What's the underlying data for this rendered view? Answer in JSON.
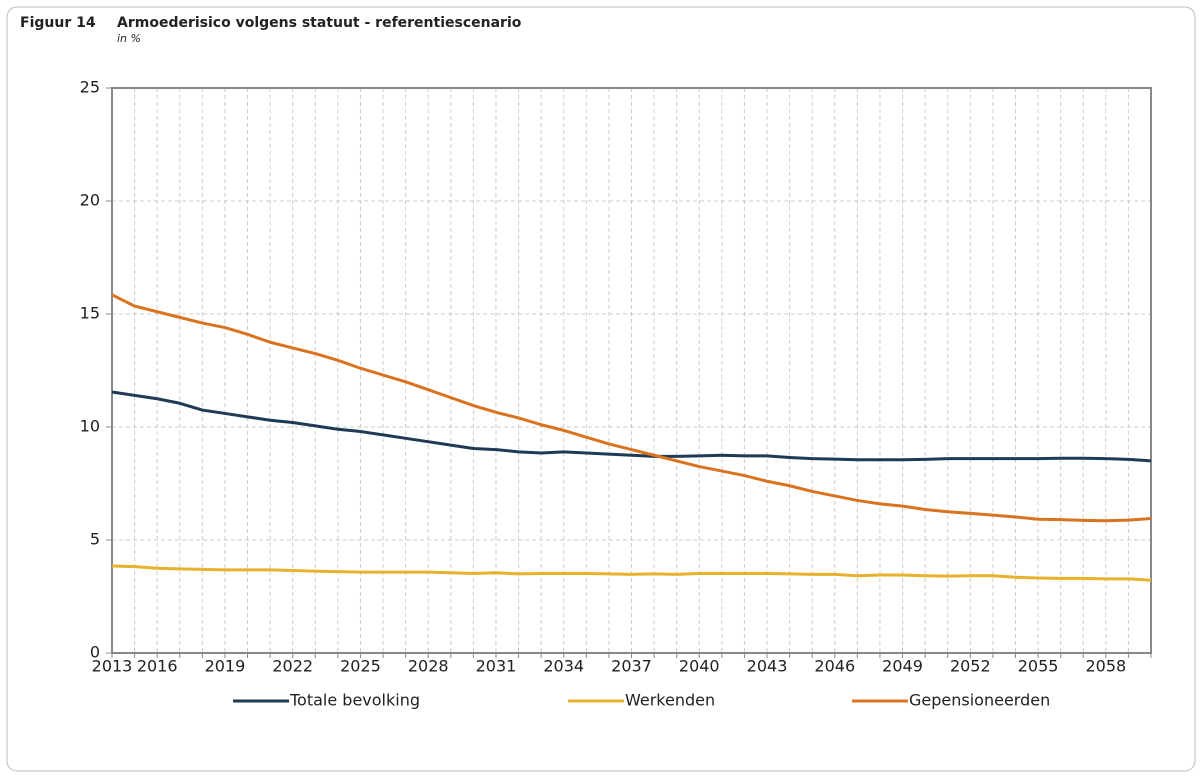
{
  "chart_data": {
    "type": "line",
    "figure_label": "Figuur 14",
    "title": "Armoederisico volgens statuut - referentiescenario",
    "subtitle": "in %",
    "categories": [
      "2013",
      null,
      "2016",
      null,
      null,
      "2019",
      null,
      null,
      "2022",
      null,
      null,
      "2025",
      null,
      null,
      "2028",
      null,
      null,
      "2031",
      null,
      null,
      "2034",
      null,
      null,
      "2037",
      null,
      null,
      "2040",
      null,
      null,
      "2043",
      null,
      null,
      "2046",
      null,
      null,
      "2049",
      null,
      null,
      "2052",
      null,
      null,
      "2055",
      null,
      null,
      "2058",
      null,
      null
    ],
    "series": [
      {
        "name": "Totale bevolking",
        "color": "#1f3a55",
        "values": [
          11.55,
          11.4,
          11.25,
          11.05,
          10.75,
          10.6,
          10.45,
          10.3,
          10.2,
          10.05,
          9.9,
          9.8,
          9.65,
          9.5,
          9.35,
          9.2,
          9.05,
          9.0,
          8.9,
          8.85,
          8.9,
          8.85,
          8.8,
          8.75,
          8.7,
          8.7,
          8.72,
          8.75,
          8.72,
          8.72,
          8.65,
          8.6,
          8.58,
          8.55,
          8.55,
          8.55,
          8.57,
          8.6,
          8.6,
          8.6,
          8.6,
          8.6,
          8.62,
          8.62,
          8.6,
          8.57,
          8.5
        ]
      },
      {
        "name": "Werkenden",
        "color": "#e8b12c",
        "values": [
          3.85,
          3.82,
          3.75,
          3.72,
          3.7,
          3.68,
          3.68,
          3.68,
          3.65,
          3.62,
          3.6,
          3.58,
          3.58,
          3.58,
          3.58,
          3.55,
          3.52,
          3.55,
          3.5,
          3.52,
          3.52,
          3.52,
          3.5,
          3.48,
          3.5,
          3.48,
          3.52,
          3.52,
          3.52,
          3.52,
          3.5,
          3.48,
          3.48,
          3.42,
          3.45,
          3.45,
          3.42,
          3.4,
          3.42,
          3.42,
          3.35,
          3.32,
          3.3,
          3.3,
          3.28,
          3.28,
          3.22
        ]
      },
      {
        "name": "Gepensioneerden",
        "color": "#d9731f",
        "values": [
          15.85,
          15.35,
          15.1,
          14.85,
          14.6,
          14.4,
          14.1,
          13.75,
          13.5,
          13.25,
          12.95,
          12.6,
          12.3,
          12.0,
          11.65,
          11.3,
          10.95,
          10.65,
          10.4,
          10.1,
          9.85,
          9.55,
          9.25,
          9.0,
          8.75,
          8.5,
          8.25,
          8.05,
          7.85,
          7.6,
          7.4,
          7.15,
          6.95,
          6.75,
          6.6,
          6.5,
          6.35,
          6.25,
          6.18,
          6.1,
          6.02,
          5.92,
          5.9,
          5.87,
          5.85,
          5.88,
          5.95
        ]
      }
    ],
    "ylim": [
      0,
      25
    ],
    "yticks": [
      0,
      5,
      10,
      15,
      20,
      25
    ],
    "grid": true,
    "legend": "bottom"
  }
}
